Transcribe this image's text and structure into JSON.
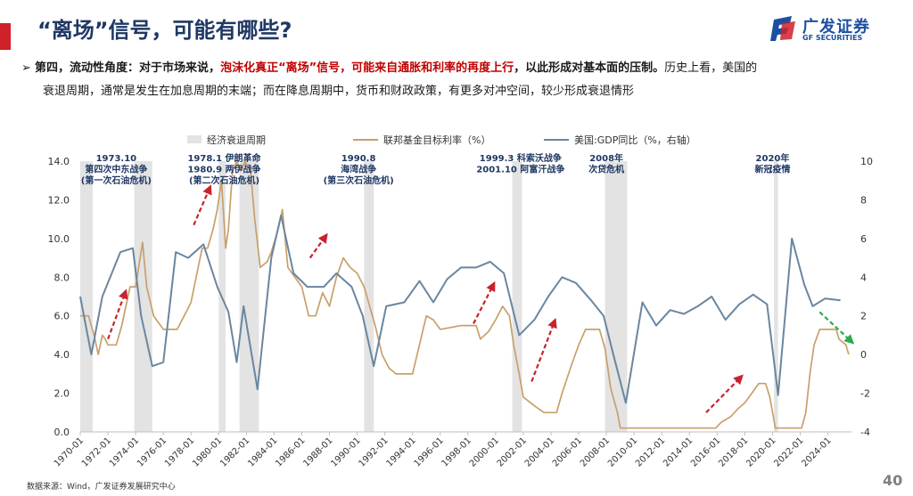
{
  "slide": {
    "title": "“离场”信号，可能有哪些?",
    "logo_cn": "广发证券",
    "logo_en": "GF SECURITIES",
    "bullet_marker": "➢",
    "bullet_lead": "第四，流动性角度：对于市场来说，",
    "bullet_highlight": "泡沫化真正“离场”信号，可能来自通胀和利率的再度上行",
    "bullet_bold_tail": "，以此形成对基本面的压制。",
    "bullet_normal_tail": "历史上看，美国的",
    "bullet_line2": "衰退周期，通常是发生在加息周期的末端；而在降息周期中，货币和财政政策，有更多对冲空间，较少形成衰退情形",
    "source": "数据来源：Wind，广发证券发展研究中心",
    "page_number": "40"
  },
  "colors": {
    "title": "#1f3864",
    "highlight": "#c00000",
    "fed_line": "#c8a06a",
    "gdp_line": "#6a86a0",
    "recession": "#e3e3e3",
    "annotation": "#1f3864",
    "arrow_red": "#c8232c",
    "arrow_green": "#2eaa4e"
  },
  "chart_data": {
    "type": "line",
    "title": "",
    "legend": [
      "经济衰退周期",
      "联邦基金目标利率（%）",
      "美国:GDP同比（%，右轴）"
    ],
    "legend_position": "top",
    "x_ticks": [
      "1970-01",
      "1972-01",
      "1974-01",
      "1976-01",
      "1978-01",
      "1980-01",
      "1982-01",
      "1984-01",
      "1986-01",
      "1988-01",
      "1990-01",
      "1992-01",
      "1994-01",
      "1996-01",
      "1998-01",
      "2000-01",
      "2002-01",
      "2004-01",
      "2006-01",
      "2008-01",
      "2010-01",
      "2012-01",
      "2014-01",
      "2016-01",
      "2018-01",
      "2020-01",
      "2022-01",
      "2024-01"
    ],
    "x_range": [
      1970.0,
      2025.7
    ],
    "y_left": {
      "label": "联邦基金目标利率（%）",
      "range": [
        0,
        14
      ],
      "ticks": [
        "0.0",
        "2.0",
        "4.0",
        "6.0",
        "8.0",
        "10.0",
        "12.0",
        "14.0"
      ]
    },
    "y_right": {
      "label": "美国:GDP同比（%，右轴）",
      "range": [
        -4,
        10
      ],
      "ticks": [
        "-4",
        "-2",
        "0",
        "2",
        "4",
        "6",
        "8",
        "10"
      ]
    },
    "recessions": [
      [
        1970.0,
        1970.9
      ],
      [
        1973.9,
        1975.2
      ],
      [
        1980.0,
        1980.5
      ],
      [
        1981.5,
        1982.9
      ],
      [
        1990.5,
        1991.2
      ],
      [
        2001.2,
        2001.9
      ],
      [
        2007.9,
        2009.5
      ],
      [
        2020.1,
        2020.4
      ]
    ],
    "series": [
      {
        "name": "联邦基金目标利率（%）",
        "axis": "left",
        "points": [
          [
            1970.0,
            6.0
          ],
          [
            1970.6,
            6.0
          ],
          [
            1971.0,
            5.0
          ],
          [
            1971.3,
            4.0
          ],
          [
            1971.6,
            5.0
          ],
          [
            1971.8,
            4.8
          ],
          [
            1972.0,
            4.5
          ],
          [
            1972.6,
            4.5
          ],
          [
            1973.0,
            5.5
          ],
          [
            1973.3,
            6.5
          ],
          [
            1973.6,
            7.5
          ],
          [
            1974.0,
            7.5
          ],
          [
            1974.5,
            9.8
          ],
          [
            1974.8,
            7.5
          ],
          [
            1975.3,
            6.0
          ],
          [
            1976.0,
            5.3
          ],
          [
            1977.0,
            5.3
          ],
          [
            1977.8,
            6.4
          ],
          [
            1978.0,
            6.7
          ],
          [
            1978.8,
            9.5
          ],
          [
            1979.2,
            9.5
          ],
          [
            1979.6,
            10.5
          ],
          [
            1979.9,
            11.5
          ],
          [
            1980.2,
            13.0
          ],
          [
            1980.5,
            9.5
          ],
          [
            1980.7,
            10.5
          ],
          [
            1981.0,
            13.5
          ],
          [
            1981.3,
            14.0
          ],
          [
            1981.6,
            13.5
          ],
          [
            1981.9,
            14.0
          ],
          [
            1982.3,
            13.5
          ],
          [
            1982.6,
            11.0
          ],
          [
            1983.0,
            8.5
          ],
          [
            1983.5,
            8.8
          ],
          [
            1983.8,
            9.3
          ],
          [
            1984.3,
            10.5
          ],
          [
            1984.6,
            11.5
          ],
          [
            1985.0,
            8.5
          ],
          [
            1985.5,
            8.0
          ],
          [
            1986.0,
            7.5
          ],
          [
            1986.5,
            6.0
          ],
          [
            1987.0,
            6.0
          ],
          [
            1987.5,
            7.2
          ],
          [
            1988.0,
            6.5
          ],
          [
            1988.5,
            8.0
          ],
          [
            1989.0,
            9.0
          ],
          [
            1989.5,
            8.5
          ],
          [
            1990.0,
            8.2
          ],
          [
            1990.5,
            7.5
          ],
          [
            1990.9,
            6.5
          ],
          [
            1991.3,
            5.5
          ],
          [
            1991.8,
            4.0
          ],
          [
            1992.3,
            3.3
          ],
          [
            1992.8,
            3.0
          ],
          [
            1993.5,
            3.0
          ],
          [
            1994.0,
            3.0
          ],
          [
            1994.4,
            4.2
          ],
          [
            1995.0,
            6.0
          ],
          [
            1995.5,
            5.8
          ],
          [
            1996.0,
            5.3
          ],
          [
            1997.5,
            5.5
          ],
          [
            1998.6,
            5.5
          ],
          [
            1998.9,
            4.8
          ],
          [
            1999.5,
            5.2
          ],
          [
            2000.0,
            5.8
          ],
          [
            2000.5,
            6.5
          ],
          [
            2001.0,
            6.0
          ],
          [
            2001.3,
            4.5
          ],
          [
            2001.7,
            3.0
          ],
          [
            2002.0,
            1.8
          ],
          [
            2002.9,
            1.3
          ],
          [
            2003.5,
            1.0
          ],
          [
            2004.4,
            1.0
          ],
          [
            2004.8,
            2.0
          ],
          [
            2005.5,
            3.5
          ],
          [
            2006.0,
            4.5
          ],
          [
            2006.5,
            5.3
          ],
          [
            2007.5,
            5.3
          ],
          [
            2007.9,
            4.3
          ],
          [
            2008.3,
            2.3
          ],
          [
            2008.8,
            1.0
          ],
          [
            2009.0,
            0.2
          ],
          [
            2015.9,
            0.2
          ],
          [
            2016.3,
            0.5
          ],
          [
            2017.0,
            0.8
          ],
          [
            2017.5,
            1.2
          ],
          [
            2018.0,
            1.5
          ],
          [
            2018.5,
            2.0
          ],
          [
            2019.0,
            2.5
          ],
          [
            2019.5,
            2.5
          ],
          [
            2019.8,
            1.8
          ],
          [
            2020.2,
            0.2
          ],
          [
            2022.1,
            0.2
          ],
          [
            2022.4,
            1.0
          ],
          [
            2022.7,
            3.0
          ],
          [
            2023.0,
            4.5
          ],
          [
            2023.4,
            5.3
          ],
          [
            2024.6,
            5.3
          ],
          [
            2024.8,
            4.8
          ],
          [
            2025.3,
            4.5
          ],
          [
            2025.5,
            4.0
          ]
        ]
      },
      {
        "name": "美国:GDP同比（%，右轴）",
        "axis": "right",
        "points": [
          [
            1970.0,
            3.0
          ],
          [
            1970.8,
            0.0
          ],
          [
            1971.6,
            3.0
          ],
          [
            1972.9,
            5.3
          ],
          [
            1973.8,
            5.5
          ],
          [
            1974.4,
            2.0
          ],
          [
            1975.2,
            -0.6
          ],
          [
            1976.0,
            -0.4
          ],
          [
            1976.9,
            5.3
          ],
          [
            1977.8,
            5.0
          ],
          [
            1978.9,
            5.7
          ],
          [
            1979.9,
            3.5
          ],
          [
            1980.7,
            2.2
          ],
          [
            1981.3,
            -0.4
          ],
          [
            1981.8,
            2.5
          ],
          [
            1982.8,
            -1.8
          ],
          [
            1983.8,
            5.0
          ],
          [
            1984.5,
            7.2
          ],
          [
            1985.4,
            4.2
          ],
          [
            1986.4,
            3.5
          ],
          [
            1987.6,
            3.5
          ],
          [
            1988.5,
            4.2
          ],
          [
            1989.6,
            3.5
          ],
          [
            1990.4,
            2.0
          ],
          [
            1991.2,
            -0.6
          ],
          [
            1992.1,
            2.5
          ],
          [
            1993.4,
            2.7
          ],
          [
            1994.5,
            3.8
          ],
          [
            1995.5,
            2.7
          ],
          [
            1996.5,
            3.9
          ],
          [
            1997.5,
            4.5
          ],
          [
            1998.6,
            4.5
          ],
          [
            1999.6,
            4.8
          ],
          [
            2000.6,
            4.2
          ],
          [
            2001.7,
            1.0
          ],
          [
            2002.8,
            1.8
          ],
          [
            2003.8,
            3.0
          ],
          [
            2004.8,
            4.0
          ],
          [
            2005.8,
            3.7
          ],
          [
            2006.9,
            2.8
          ],
          [
            2007.8,
            2.0
          ],
          [
            2008.5,
            0.0
          ],
          [
            2009.4,
            -2.5
          ],
          [
            2010.6,
            2.7
          ],
          [
            2011.6,
            1.5
          ],
          [
            2012.6,
            2.3
          ],
          [
            2013.6,
            2.1
          ],
          [
            2014.6,
            2.5
          ],
          [
            2015.6,
            3.0
          ],
          [
            2016.6,
            1.8
          ],
          [
            2017.6,
            2.6
          ],
          [
            2018.6,
            3.1
          ],
          [
            2019.6,
            2.6
          ],
          [
            2020.4,
            -2.1
          ],
          [
            2021.4,
            6.0
          ],
          [
            2022.3,
            3.6
          ],
          [
            2022.9,
            2.5
          ],
          [
            2023.8,
            2.9
          ],
          [
            2024.9,
            2.8
          ]
        ]
      }
    ],
    "event_annotations": [
      {
        "year": 1972.6,
        "lines": [
          "1973.10",
          "第四次中东战争",
          "(第一次石油危机)"
        ]
      },
      {
        "year": 1980.4,
        "lines": [
          "1978.1 伊朗革命",
          "1980.9 两伊战争",
          "(第二次石油危机)"
        ]
      },
      {
        "year": 1990.1,
        "lines": [
          "1990.8",
          "海湾战争",
          "(第三次石油危机)"
        ]
      },
      {
        "year": 2001.8,
        "lines": [
          "1999.3 科索沃战争",
          "2001.10 阿富汗战争"
        ]
      },
      {
        "year": 2008.0,
        "lines": [
          "2008年",
          "次贷危机"
        ]
      },
      {
        "year": 2020.0,
        "lines": [
          "2020年",
          "新冠疫情"
        ]
      }
    ],
    "trend_arrows": [
      {
        "color": "red",
        "from": [
          1972.0,
          4.8
        ],
        "to": [
          1973.3,
          7.3
        ]
      },
      {
        "color": "red",
        "from": [
          1978.2,
          10.7
        ],
        "to": [
          1979.4,
          12.7
        ]
      },
      {
        "color": "red",
        "from": [
          1986.6,
          9.0
        ],
        "to": [
          1987.8,
          10.2
        ]
      },
      {
        "color": "red",
        "from": [
          1998.4,
          5.6
        ],
        "to": [
          1999.9,
          7.7
        ]
      },
      {
        "color": "red",
        "from": [
          2002.6,
          2.6
        ],
        "to": [
          2004.3,
          5.8
        ]
      },
      {
        "color": "red",
        "from": [
          2015.2,
          1.0
        ],
        "to": [
          2017.8,
          2.9
        ]
      },
      {
        "color": "green",
        "from": [
          2023.4,
          6.2
        ],
        "to": [
          2025.8,
          4.6
        ]
      }
    ]
  }
}
